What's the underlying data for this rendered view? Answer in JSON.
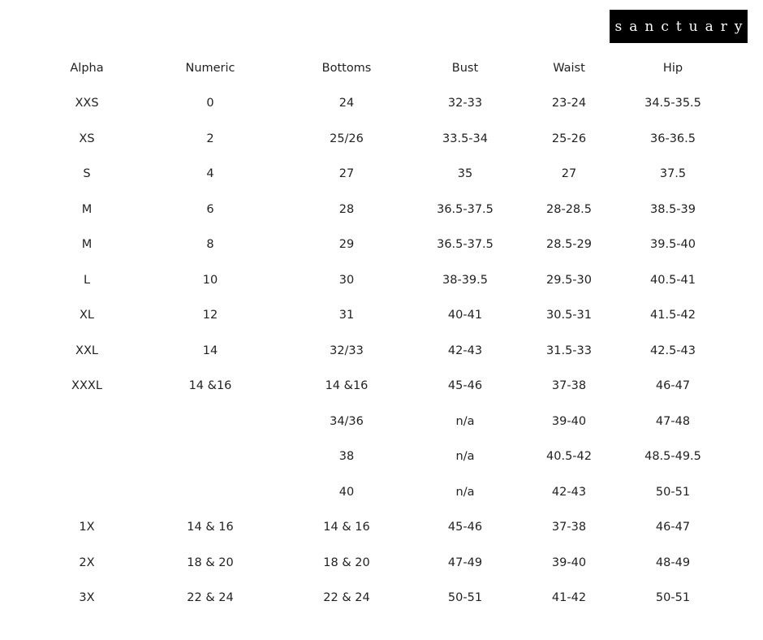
{
  "brand": {
    "logo_text": "sanctuary"
  },
  "size_chart": {
    "headers": [
      "Alpha",
      "Numeric",
      "Bottoms",
      "Bust",
      "Waist",
      "Hip"
    ],
    "rows": [
      [
        "XXS",
        "0",
        "24",
        "32-33",
        "23-24",
        "34.5-35.5"
      ],
      [
        "XS",
        "2",
        "25/26",
        "33.5-34",
        "25-26",
        "36-36.5"
      ],
      [
        "S",
        "4",
        "27",
        "35",
        "27",
        "37.5"
      ],
      [
        "M",
        "6",
        "28",
        "36.5-37.5",
        "28-28.5",
        "38.5-39"
      ],
      [
        "M",
        "8",
        "29",
        "36.5-37.5",
        "28.5-29",
        "39.5-40"
      ],
      [
        "L",
        "10",
        "30",
        "38-39.5",
        "29.5-30",
        "40.5-41"
      ],
      [
        "XL",
        "12",
        "31",
        "40-41",
        "30.5-31",
        "41.5-42"
      ],
      [
        "XXL",
        "14",
        "32/33",
        "42-43",
        "31.5-33",
        "42.5-43"
      ],
      [
        "XXXL",
        "14 &16",
        "14 &16",
        "45-46",
        "37-38",
        "46-47"
      ],
      [
        "",
        "",
        "34/36",
        "n/a",
        "39-40",
        "47-48"
      ],
      [
        "",
        "",
        "38",
        "n/a",
        "40.5-42",
        "48.5-49.5"
      ],
      [
        "",
        "",
        "40",
        "n/a",
        "42-43",
        "50-51"
      ],
      [
        "1X",
        "14 & 16",
        "14 & 16",
        "45-46",
        "37-38",
        "46-47"
      ],
      [
        "2X",
        "18 & 20",
        "18 & 20",
        "47-49",
        "39-40",
        "48-49"
      ],
      [
        "3X",
        "22 & 24",
        "22 & 24",
        "50-51",
        "41-42",
        "50-51"
      ]
    ]
  }
}
